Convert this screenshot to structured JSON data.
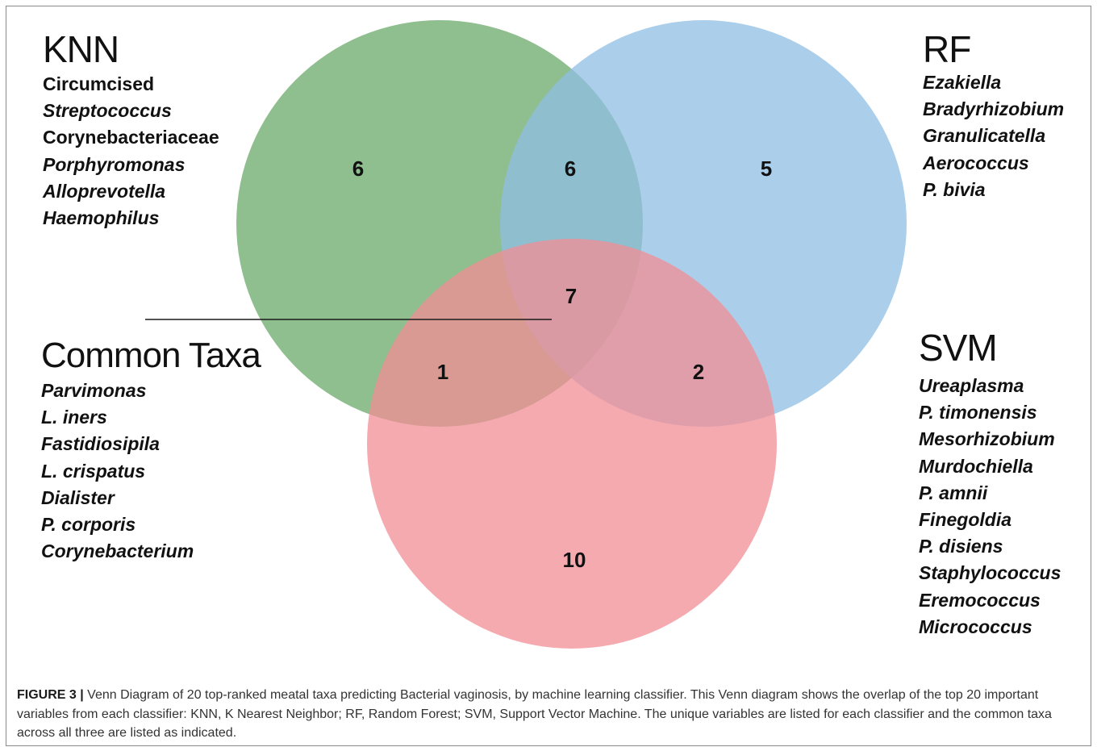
{
  "diagram": {
    "type": "venn",
    "colors": {
      "knn": "#6aa86a",
      "rf": "#8fbde3",
      "svm": "#f28e95"
    },
    "sets": [
      "KNN",
      "RF",
      "SVM"
    ],
    "regions": {
      "knn_only": "6",
      "knn_rf": "6",
      "rf_only": "5",
      "all_three": "7",
      "knn_svm": "1",
      "rf_svm": "2",
      "svm_only": "10"
    }
  },
  "groups": {
    "knn": {
      "title": "KNN",
      "items": [
        {
          "text": "Circumcised",
          "italic": false
        },
        {
          "text": "Streptococcus",
          "italic": true
        },
        {
          "text": "Corynebacteriaceae",
          "italic": false
        },
        {
          "text": "Porphyromonas",
          "italic": true
        },
        {
          "text": "Alloprevotella",
          "italic": true
        },
        {
          "text": "Haemophilus",
          "italic": true
        }
      ]
    },
    "rf": {
      "title": "RF",
      "items": [
        {
          "text": "Ezakiella",
          "italic": true
        },
        {
          "text": "Bradyrhizobium",
          "italic": true
        },
        {
          "text": "Granulicatella",
          "italic": true
        },
        {
          "text": "Aerococcus",
          "italic": true
        },
        {
          "text": "P. bivia",
          "italic": true
        }
      ]
    },
    "common": {
      "title": "Common Taxa",
      "items": [
        {
          "text": "Parvimonas",
          "italic": true
        },
        {
          "text": "L. iners",
          "italic": true
        },
        {
          "text": "Fastidiosipila",
          "italic": true
        },
        {
          "text": "L. crispatus",
          "italic": true
        },
        {
          "text": "Dialister",
          "italic": true
        },
        {
          "text": "P. corporis",
          "italic": true
        },
        {
          "text": "Corynebacterium",
          "italic": true
        }
      ]
    },
    "svm": {
      "title": "SVM",
      "items": [
        {
          "text": "Ureaplasma",
          "italic": true
        },
        {
          "text": "P. timonensis",
          "italic": true
        },
        {
          "text": "Mesorhizobium",
          "italic": true
        },
        {
          "text": "Murdochiella",
          "italic": true
        },
        {
          "text": "P. amnii",
          "italic": true
        },
        {
          "text": "Finegoldia",
          "italic": true
        },
        {
          "text": "P. disiens",
          "italic": true
        },
        {
          "text": "Staphylococcus",
          "italic": true
        },
        {
          "text": "Eremococcus",
          "italic": true
        },
        {
          "text": "Micrococcus",
          "italic": true
        }
      ]
    }
  },
  "caption": {
    "label": "FIGURE 3 |",
    "text": "Venn Diagram of 20 top-ranked meatal taxa predicting Bacterial vaginosis, by machine learning classifier. This Venn diagram shows the overlap of the top 20 important variables from each classifier: KNN, K Nearest Neighbor; RF, Random Forest; SVM, Support Vector Machine. The unique variables are listed for each classifier and the common taxa across all three are listed as indicated."
  }
}
